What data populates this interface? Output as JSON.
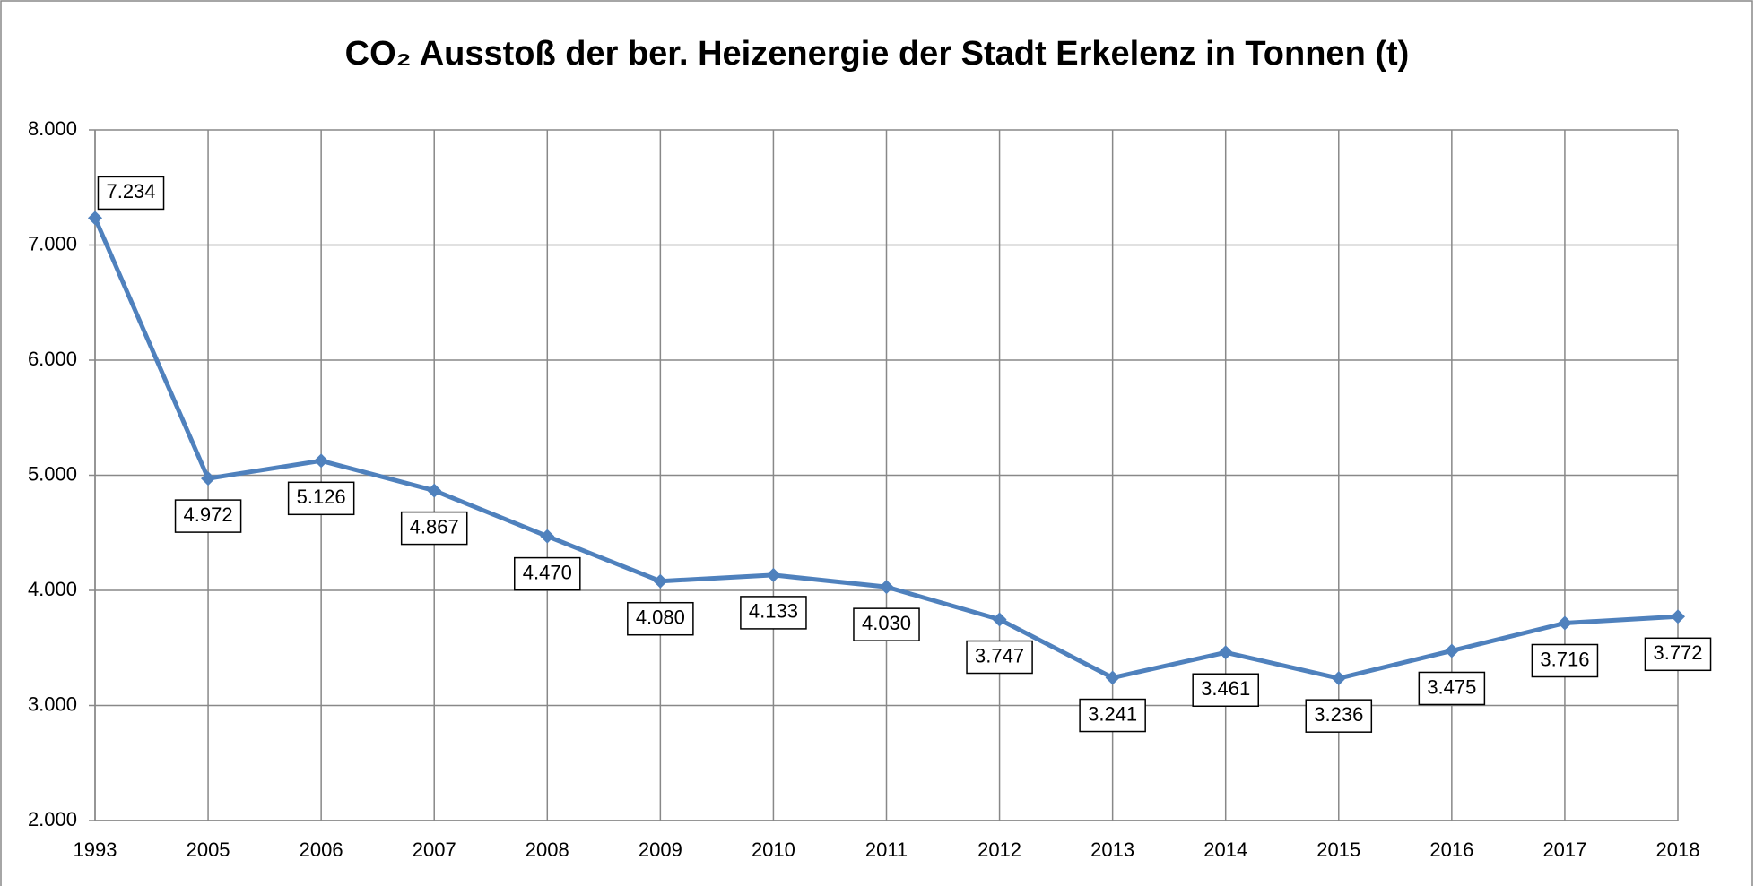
{
  "chart_data": {
    "type": "line",
    "title": "CO₂ Ausstoß der ber. Heizenergie der Stadt Erkelenz in Tonnen (t)",
    "categories": [
      "1993",
      "2005",
      "2006",
      "2007",
      "2008",
      "2009",
      "2010",
      "2011",
      "2012",
      "2013",
      "2014",
      "2015",
      "2016",
      "2017",
      "2018"
    ],
    "series": [
      {
        "name": "CO₂ Ausstoß",
        "color": "#4f81bd",
        "values": [
          7234,
          4972,
          5126,
          4867,
          4470,
          4080,
          4133,
          4030,
          3747,
          3241,
          3461,
          3236,
          3475,
          3716,
          3772
        ],
        "value_labels": [
          "7.234",
          "4.972",
          "5.126",
          "4.867",
          "4.470",
          "4.080",
          "4.133",
          "4.030",
          "3.747",
          "3.241",
          "3.461",
          "3.236",
          "3.475",
          "3.716",
          "3.772"
        ]
      }
    ],
    "ylim": [
      2000,
      8000
    ],
    "yticks": [
      {
        "value": 2000,
        "label": "2.000"
      },
      {
        "value": 3000,
        "label": "3.000"
      },
      {
        "value": 4000,
        "label": "4.000"
      },
      {
        "value": 5000,
        "label": "5.000"
      },
      {
        "value": 6000,
        "label": "6.000"
      },
      {
        "value": 7000,
        "label": "7.000"
      },
      {
        "value": 8000,
        "label": "8.000"
      }
    ],
    "grid": true
  }
}
